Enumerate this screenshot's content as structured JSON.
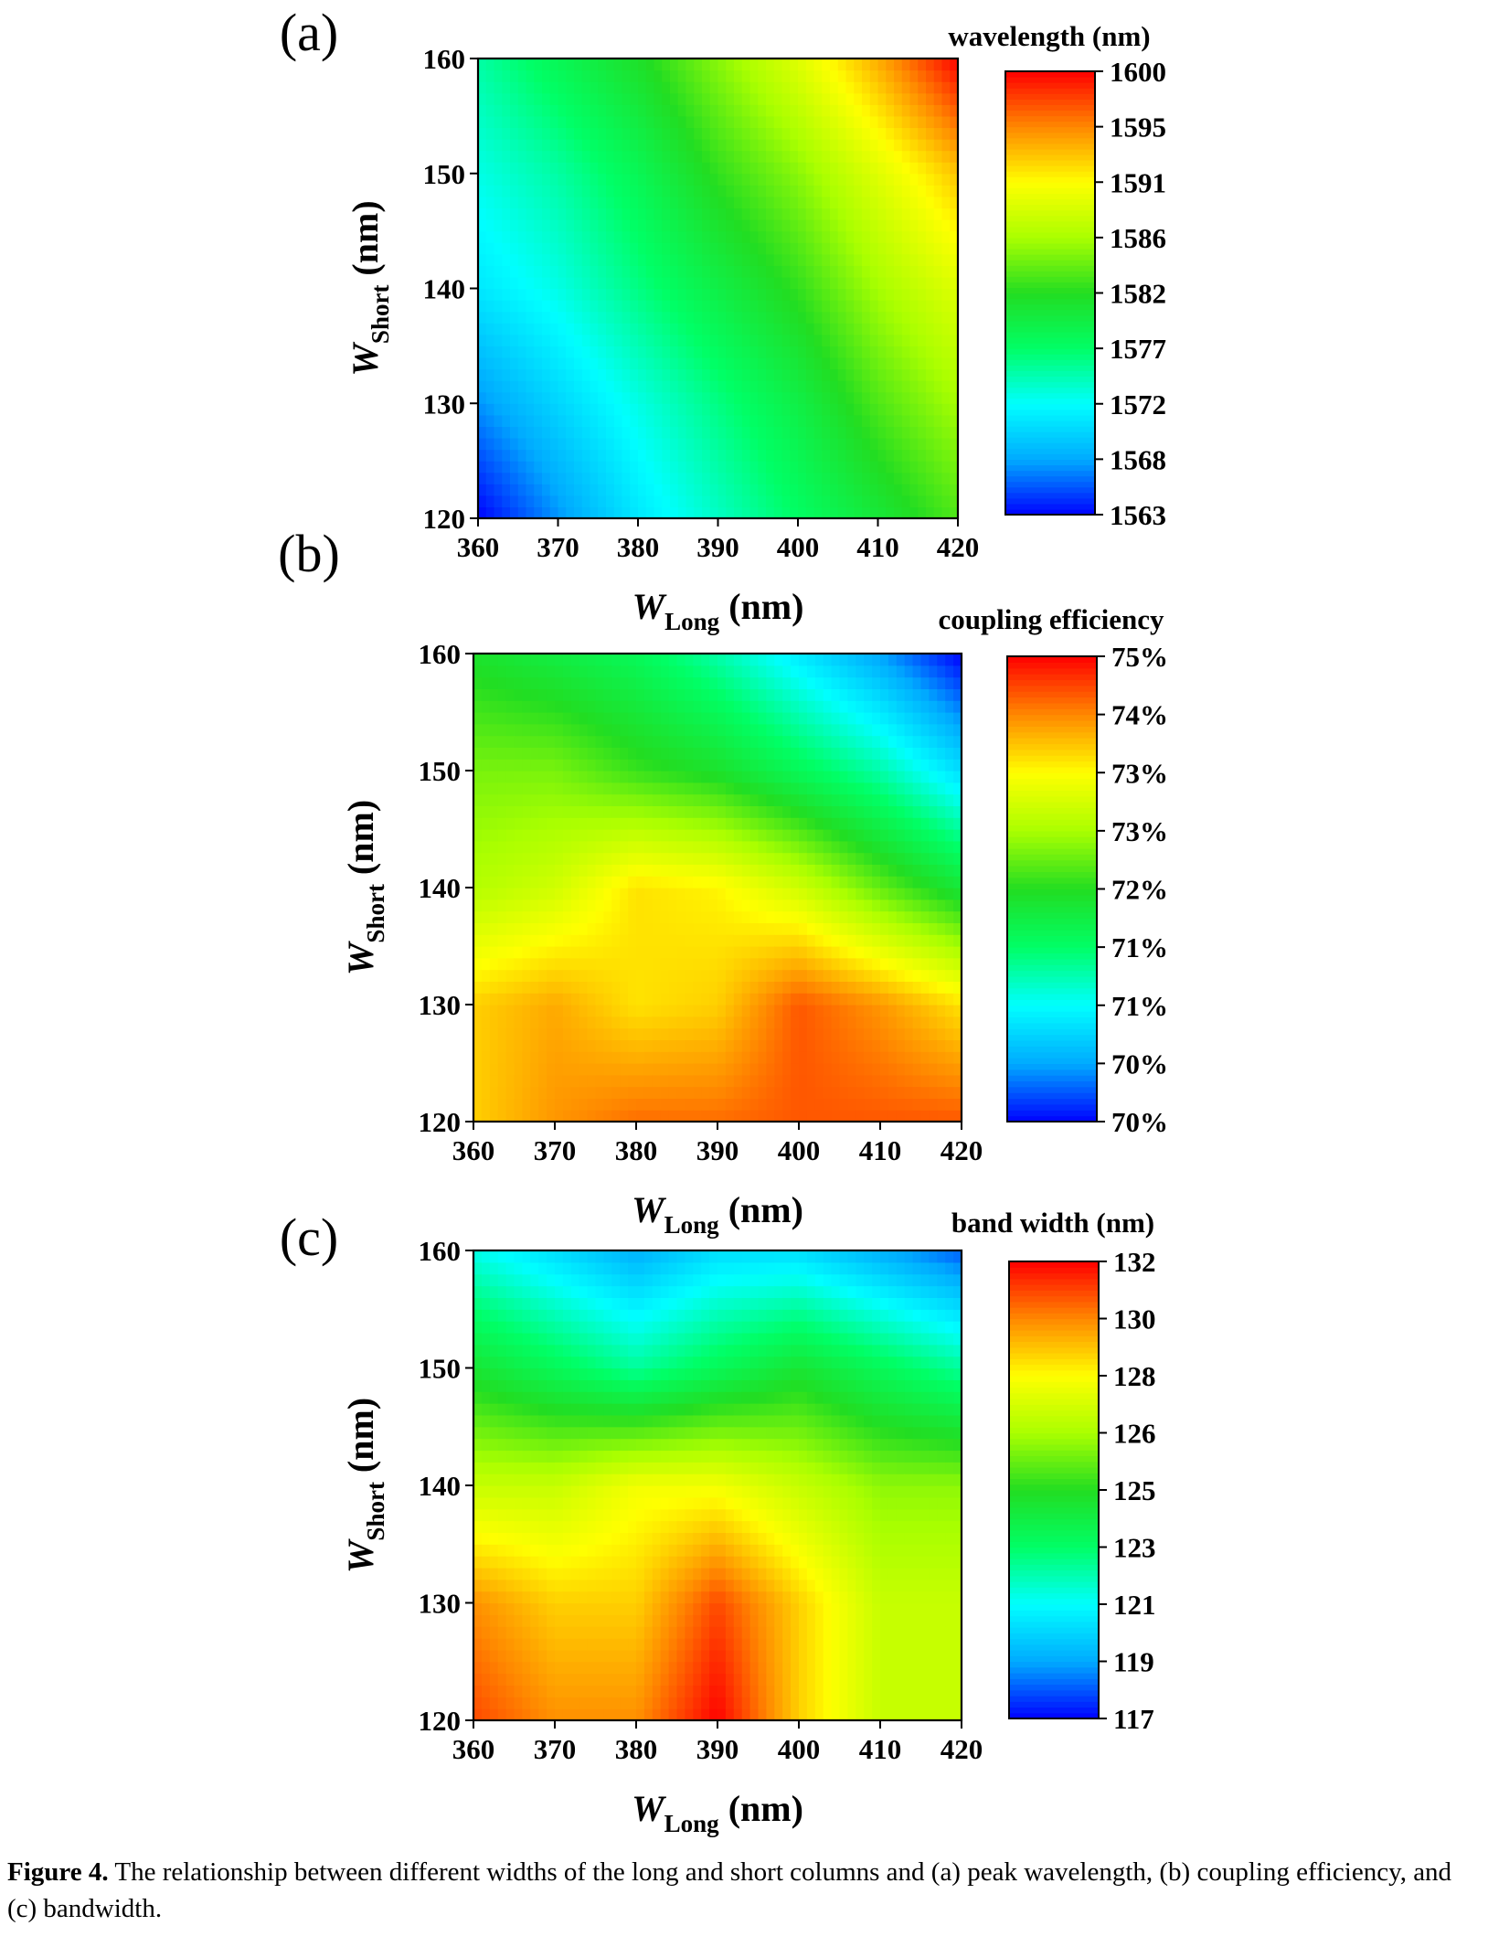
{
  "caption": {
    "label": "Figure 4.",
    "text": "The relationship between different widths of the long and short columns and (a) peak wavelength, (b) coupling efficiency, and (c) bandwidth."
  },
  "chart_data": [
    {
      "type": "heatmap",
      "panel_label": "(a)",
      "xlabel_main": "W",
      "xlabel_sub": "Long",
      "xlabel_unit": "(nm)",
      "ylabel_main": "W",
      "ylabel_sub": "Short",
      "ylabel_unit": "(nm)",
      "xlim": [
        360,
        420
      ],
      "ylim": [
        120,
        160
      ],
      "xticks": [
        "360",
        "370",
        "380",
        "390",
        "400",
        "410",
        "420"
      ],
      "yticks": [
        "120",
        "130",
        "140",
        "150",
        "160"
      ],
      "colorbar_title": "wavelength (nm)",
      "colorbar_range": [
        1563,
        1600
      ],
      "colorbar_ticks": [
        "1563",
        "1568",
        "1572",
        "1577",
        "1582",
        "1586",
        "1591",
        "1595",
        "1600"
      ],
      "colormap": [
        "#0000ff",
        "#00aaff",
        "#00ffff",
        "#00ff66",
        "#22dd22",
        "#aaff00",
        "#ffff00",
        "#ff8800",
        "#ff0000"
      ],
      "grid": false,
      "x": [
        360,
        370,
        380,
        390,
        400,
        410,
        420
      ],
      "y": [
        120,
        130,
        140,
        150,
        160
      ],
      "z": [
        [
          1563,
          1567,
          1571,
          1574,
          1577,
          1580,
          1583
        ],
        [
          1567,
          1570,
          1573,
          1576,
          1579,
          1583,
          1586
        ],
        [
          1571,
          1573,
          1576,
          1579,
          1582,
          1586,
          1589
        ],
        [
          1573,
          1575,
          1578,
          1582,
          1585,
          1589,
          1593
        ],
        [
          1575,
          1578,
          1581,
          1585,
          1589,
          1594,
          1600
        ]
      ]
    },
    {
      "type": "heatmap",
      "panel_label": "(b)",
      "xlabel_main": "W",
      "xlabel_sub": "Long",
      "xlabel_unit": "(nm)",
      "ylabel_main": "W",
      "ylabel_sub": "Short",
      "ylabel_unit": "(nm)",
      "xlim": [
        360,
        420
      ],
      "ylim": [
        120,
        160
      ],
      "xticks": [
        "360",
        "370",
        "380",
        "390",
        "400",
        "410",
        "420"
      ],
      "yticks": [
        "120",
        "130",
        "140",
        "150",
        "160"
      ],
      "colorbar_title": "coupling efficiency",
      "colorbar_range": [
        70,
        75
      ],
      "colorbar_ticks": [
        "70%",
        "70%",
        "71%",
        "71%",
        "72%",
        "73%",
        "73%",
        "74%",
        "75%"
      ],
      "colormap": [
        "#0000ff",
        "#00aaff",
        "#00ffff",
        "#00ff66",
        "#22dd22",
        "#aaff00",
        "#ffff00",
        "#ff8800",
        "#ff0000"
      ],
      "grid": false,
      "x": [
        360,
        370,
        380,
        390,
        400,
        410,
        420
      ],
      "y": [
        120,
        130,
        140,
        150,
        160
      ],
      "z": [
        [
          74.0,
          74.3,
          74.5,
          74.5,
          74.6,
          74.6,
          74.6
        ],
        [
          74.0,
          74.2,
          73.9,
          74.0,
          74.6,
          74.3,
          73.9
        ],
        [
          73.2,
          73.4,
          73.9,
          73.8,
          73.4,
          72.8,
          72.3
        ],
        [
          72.9,
          72.9,
          72.6,
          72.4,
          72.0,
          71.6,
          71.0
        ],
        [
          72.4,
          72.2,
          72.0,
          71.6,
          71.1,
          70.6,
          70.0
        ]
      ]
    },
    {
      "type": "heatmap",
      "panel_label": "(c)",
      "xlabel_main": "W",
      "xlabel_sub": "Long",
      "xlabel_unit": "(nm)",
      "ylabel_main": "W",
      "ylabel_sub": "Short",
      "ylabel_unit": "(nm)",
      "xlim": [
        360,
        420
      ],
      "ylim": [
        120,
        160
      ],
      "xticks": [
        "360",
        "370",
        "380",
        "390",
        "400",
        "410",
        "420"
      ],
      "yticks": [
        "120",
        "130",
        "140",
        "150",
        "160"
      ],
      "colorbar_title": "band width (nm)",
      "colorbar_range": [
        117,
        132
      ],
      "colorbar_ticks": [
        "117",
        "119",
        "121",
        "123",
        "125",
        "126",
        "128",
        "130",
        "132"
      ],
      "colormap": [
        "#0000ff",
        "#00aaff",
        "#00ffff",
        "#00ff66",
        "#22dd22",
        "#aaff00",
        "#ffff00",
        "#ff8800",
        "#ff0000"
      ],
      "grid": false,
      "x": [
        360,
        370,
        380,
        390,
        400,
        410,
        420
      ],
      "y": [
        120,
        130,
        140,
        150,
        160
      ],
      "z": [
        [
          131,
          130,
          130,
          132,
          129,
          127,
          127
        ],
        [
          130,
          129,
          129,
          131,
          129,
          127,
          127
        ],
        [
          127,
          127,
          128,
          128,
          127,
          126,
          126
        ],
        [
          124,
          123,
          122,
          123,
          124,
          123,
          122
        ],
        [
          121,
          120,
          119,
          120,
          120,
          119,
          118
        ]
      ]
    }
  ]
}
